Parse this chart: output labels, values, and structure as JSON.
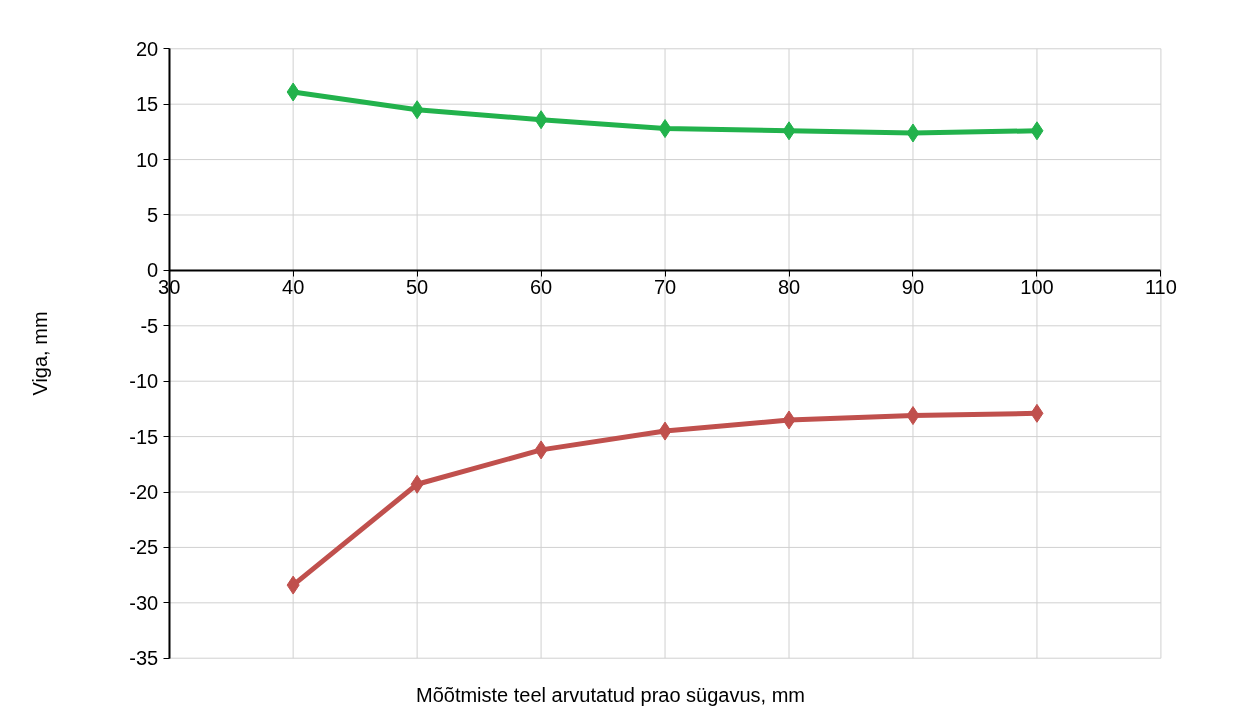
{
  "chart_data": {
    "type": "line",
    "xlabel": "Mõõtmiste teel arvutatud prao sügavus, mm",
    "ylabel": "Viga, mm",
    "x": [
      40,
      50,
      60,
      70,
      80,
      90,
      100
    ],
    "series": [
      {
        "color": "#22b24c",
        "values": [
          16.1,
          14.5,
          13.6,
          12.8,
          12.6,
          12.4,
          12.6
        ]
      },
      {
        "color": "#c0504d",
        "values": [
          -28.4,
          -19.3,
          -16.2,
          -14.5,
          -13.5,
          -13.1,
          -12.9
        ]
      }
    ],
    "xlim": [
      30,
      110
    ],
    "xticks": [
      30,
      40,
      50,
      60,
      70,
      80,
      90,
      100,
      110
    ],
    "ylim": [
      -35,
      20
    ],
    "yticks": [
      -35,
      -30,
      -25,
      -20,
      -15,
      -10,
      -5,
      0,
      5,
      10,
      15,
      20
    ],
    "grid": true,
    "marker": "diamond",
    "line_style": "solid"
  }
}
